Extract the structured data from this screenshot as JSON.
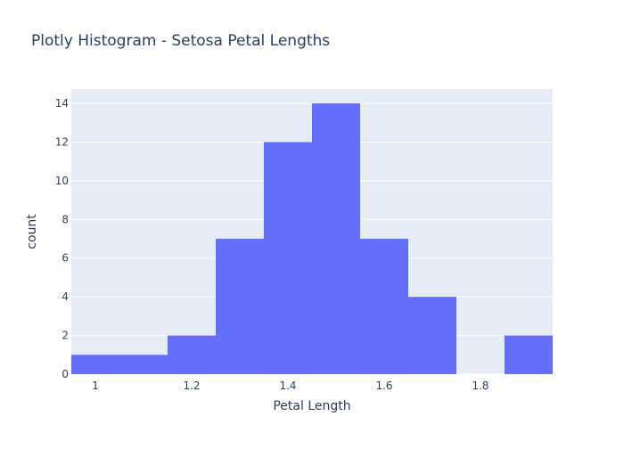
{
  "chart_data": {
    "type": "bar",
    "title": "Plotly Histogram - Setosa Petal Lengths",
    "xlabel": "Petal Length",
    "ylabel": "count",
    "bin_width": 0.1,
    "bins": [
      {
        "start": 0.95,
        "end": 1.05,
        "count": 1
      },
      {
        "start": 1.05,
        "end": 1.15,
        "count": 1
      },
      {
        "start": 1.15,
        "end": 1.25,
        "count": 2
      },
      {
        "start": 1.25,
        "end": 1.35,
        "count": 7
      },
      {
        "start": 1.35,
        "end": 1.45,
        "count": 12
      },
      {
        "start": 1.45,
        "end": 1.55,
        "count": 14
      },
      {
        "start": 1.55,
        "end": 1.65,
        "count": 7
      },
      {
        "start": 1.65,
        "end": 1.75,
        "count": 4
      },
      {
        "start": 1.75,
        "end": 1.85,
        "count": 0
      },
      {
        "start": 1.85,
        "end": 1.95,
        "count": 2
      }
    ],
    "xlim": [
      0.95,
      1.95
    ],
    "ylim": [
      0,
      14.74
    ],
    "x_ticks": [
      1,
      1.2,
      1.4,
      1.6,
      1.8
    ],
    "x_tick_labels": [
      "1",
      "1.2",
      "1.4",
      "1.6",
      "1.8"
    ],
    "y_ticks": [
      0,
      2,
      4,
      6,
      8,
      10,
      12,
      14
    ],
    "y_tick_labels": [
      "0",
      "2",
      "4",
      "6",
      "8",
      "10",
      "12",
      "14"
    ],
    "grid": true,
    "colors": {
      "bar": "#636efa",
      "plot_background": "#e5ecf6",
      "grid": "#ffffff",
      "text": "#2a3f5f"
    }
  }
}
